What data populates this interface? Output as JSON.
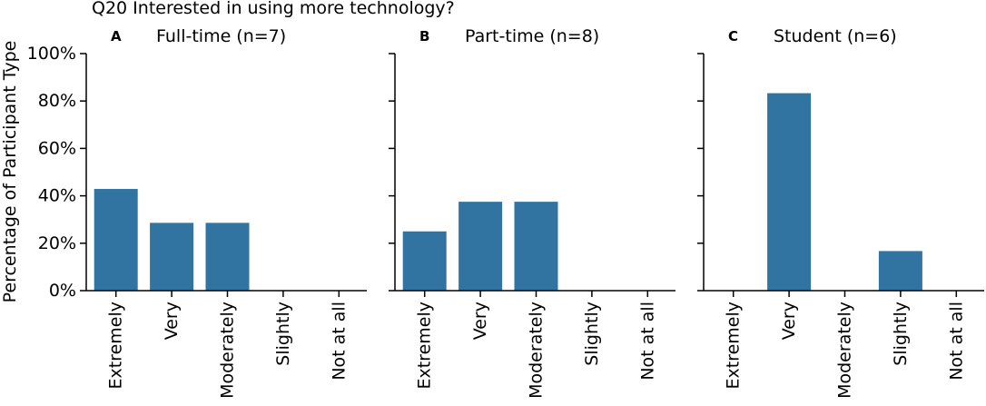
{
  "figure_title": "Q20 Interested in using more technology?",
  "ylabel": "Percentage of Participant Type",
  "chart_data": [
    {
      "type": "bar",
      "panel_letter": "A",
      "title": "Full-time (n=7)",
      "categories": [
        "Extremely",
        "Very",
        "Moderately",
        "Slightly",
        "Not at all"
      ],
      "values": [
        42.9,
        28.6,
        28.6,
        0,
        0
      ],
      "ylim": [
        0,
        100
      ],
      "yticks": [
        "0%",
        "20%",
        "40%",
        "60%",
        "80%",
        "100%"
      ],
      "ylabel": "Percentage of Participant Type",
      "bar_color": "#3274a1"
    },
    {
      "type": "bar",
      "panel_letter": "B",
      "title": "Part-time (n=8)",
      "categories": [
        "Extremely",
        "Very",
        "Moderately",
        "Slightly",
        "Not at all"
      ],
      "values": [
        25,
        37.5,
        37.5,
        0,
        0
      ],
      "ylim": [
        0,
        100
      ],
      "yticks": [
        "0%",
        "20%",
        "40%",
        "60%",
        "80%",
        "100%"
      ],
      "bar_color": "#3274a1"
    },
    {
      "type": "bar",
      "panel_letter": "C",
      "title": "Student (n=6)",
      "categories": [
        "Extremely",
        "Very",
        "Moderately",
        "Slightly",
        "Not at all"
      ],
      "values": [
        0,
        83.3,
        0,
        16.7,
        0
      ],
      "ylim": [
        0,
        100
      ],
      "yticks": [
        "0%",
        "20%",
        "40%",
        "60%",
        "80%",
        "100%"
      ],
      "bar_color": "#3274a1"
    }
  ]
}
